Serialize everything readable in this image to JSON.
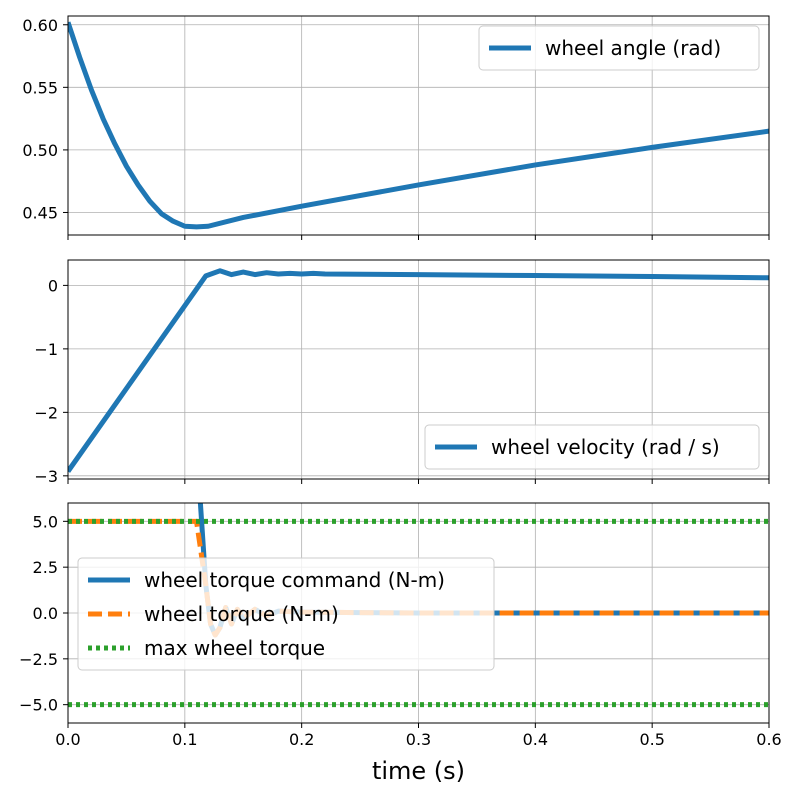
{
  "chart_data": [
    {
      "type": "line",
      "xlim": [
        0,
        0.6
      ],
      "ylim": [
        0.432,
        0.607
      ],
      "xticks": [
        0,
        0.1,
        0.2,
        0.3,
        0.4,
        0.5,
        0.6
      ],
      "yticks": [
        0.45,
        0.5,
        0.55,
        0.6
      ],
      "ytick_labels": [
        "0.45",
        "0.50",
        "0.55",
        "0.60"
      ],
      "grid": true,
      "legend_position": "top-right",
      "series": [
        {
          "name": "wheel angle (rad)",
          "color": "#1f77b4",
          "style": "solid",
          "x": [
            0,
            0.01,
            0.02,
            0.03,
            0.04,
            0.05,
            0.06,
            0.07,
            0.08,
            0.09,
            0.1,
            0.11,
            0.12,
            0.15,
            0.2,
            0.3,
            0.4,
            0.5,
            0.6
          ],
          "y": [
            0.602,
            0.574,
            0.548,
            0.525,
            0.505,
            0.487,
            0.472,
            0.459,
            0.449,
            0.443,
            0.439,
            0.4385,
            0.439,
            0.446,
            0.455,
            0.472,
            0.488,
            0.502,
            0.515
          ]
        }
      ]
    },
    {
      "type": "line",
      "xlim": [
        0,
        0.6
      ],
      "ylim": [
        -3.05,
        0.4
      ],
      "xticks": [
        0,
        0.1,
        0.2,
        0.3,
        0.4,
        0.5,
        0.6
      ],
      "yticks": [
        -3,
        -2,
        -1,
        0
      ],
      "ytick_labels": [
        "−3",
        "−2",
        "−1",
        "0"
      ],
      "grid": true,
      "legend_position": "bottom-right",
      "series": [
        {
          "name": "wheel velocity (rad / s)",
          "color": "#1f77b4",
          "style": "solid",
          "x": [
            0,
            0.118,
            0.13,
            0.14,
            0.15,
            0.16,
            0.17,
            0.18,
            0.19,
            0.2,
            0.21,
            0.22,
            0.3,
            0.4,
            0.5,
            0.6
          ],
          "y": [
            -2.93,
            0.15,
            0.23,
            0.17,
            0.21,
            0.17,
            0.2,
            0.18,
            0.19,
            0.18,
            0.19,
            0.18,
            0.17,
            0.155,
            0.14,
            0.12
          ]
        }
      ]
    },
    {
      "type": "line",
      "xlim": [
        0,
        0.6
      ],
      "ylim": [
        -6,
        6
      ],
      "xticks": [
        0,
        0.1,
        0.2,
        0.3,
        0.4,
        0.5,
        0.6
      ],
      "xtick_labels": [
        "0.0",
        "0.1",
        "0.2",
        "0.3",
        "0.4",
        "0.5",
        "0.6"
      ],
      "yticks": [
        -5,
        -2.5,
        0,
        2.5,
        5
      ],
      "ytick_labels": [
        "−5.0",
        "−2.5",
        "0.0",
        "2.5",
        "5.0"
      ],
      "xlabel": "time (s)",
      "grid": true,
      "legend_position": "center-left",
      "series": [
        {
          "name": "wheel torque command (N-m)",
          "color": "#1f77b4",
          "style": "solid",
          "x": [
            0.113,
            0.118,
            0.122,
            0.126,
            0.13,
            0.135,
            0.14,
            0.145,
            0.15,
            0.16,
            0.17,
            0.18,
            0.2,
            0.25,
            0.3,
            0.6
          ],
          "y": [
            6.3,
            1.5,
            -0.6,
            -1.2,
            -0.8,
            0.3,
            -0.6,
            0.2,
            -0.3,
            0.2,
            -0.15,
            0.1,
            0.05,
            0.02,
            0,
            0
          ]
        },
        {
          "name": "wheel torque (N-m)",
          "color": "#ff7f0e",
          "style": "dashed",
          "x": [
            0,
            0.11,
            0.118,
            0.122,
            0.126,
            0.13,
            0.135,
            0.14,
            0.145,
            0.15,
            0.16,
            0.17,
            0.18,
            0.2,
            0.25,
            0.3,
            0.6
          ],
          "y": [
            5,
            5,
            1.5,
            -0.6,
            -1.2,
            -0.8,
            0.3,
            -0.6,
            0.2,
            -0.3,
            0.2,
            -0.15,
            0.1,
            0.05,
            0.02,
            0,
            0
          ]
        },
        {
          "name": "max wheel torque",
          "color": "#2ca02c",
          "style": "dotted",
          "x": [
            0,
            0.6
          ],
          "y": [
            5,
            5
          ]
        },
        {
          "name": "",
          "color": "#2ca02c",
          "style": "dotted",
          "x": [
            0,
            0.6
          ],
          "y": [
            -5,
            -5
          ]
        }
      ]
    }
  ]
}
